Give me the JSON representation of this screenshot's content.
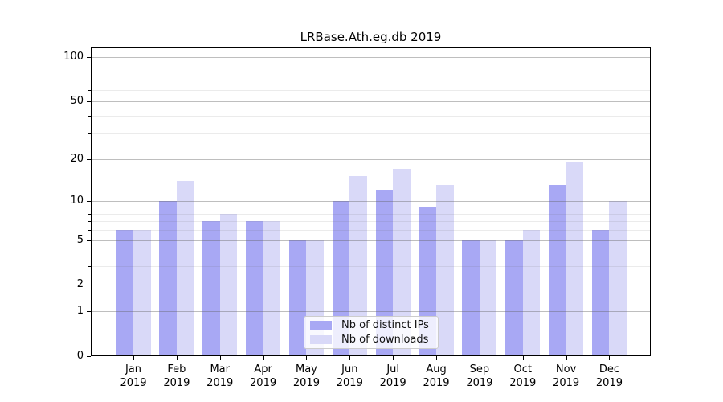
{
  "chart_data": {
    "type": "bar",
    "title": "LRBase.Ath.eg.db 2019",
    "x_year": "2019",
    "categories": [
      "Jan",
      "Feb",
      "Mar",
      "Apr",
      "May",
      "Jun",
      "Jul",
      "Aug",
      "Sep",
      "Oct",
      "Nov",
      "Dec"
    ],
    "series": [
      {
        "key": "distinct-ips",
        "name": "Nb of distinct IPs",
        "color": "#a8a8f4",
        "values": [
          6,
          10,
          7,
          7,
          5,
          10,
          12,
          9,
          5,
          5,
          13,
          6
        ]
      },
      {
        "key": "downloads",
        "name": "Nb of downloads",
        "color": "#d9d9f8",
        "values": [
          6,
          14,
          8,
          7,
          5,
          15,
          17,
          13,
          5,
          6,
          19,
          10
        ]
      }
    ],
    "y_axis": {
      "scale": "log1p",
      "ylim": [
        0,
        116
      ],
      "tick_labels": [
        "0",
        "1",
        "2",
        "5",
        "10",
        "20",
        "50",
        "100"
      ],
      "tick_values": [
        0,
        1,
        2,
        5,
        10,
        20,
        50,
        100
      ],
      "minor_tick_values": [
        3,
        4,
        6,
        7,
        8,
        9,
        30,
        40,
        60,
        70,
        80,
        90
      ]
    },
    "legend": {
      "position": "lower center"
    },
    "colors": {
      "bar_dark": "#a8a8f4",
      "bar_light": "#d9d9f8",
      "grid_major": "rgba(99,99,99,0.42)",
      "grid_minor": "rgba(99,99,99,0.13)",
      "spine": "#000000",
      "text": "#000000"
    },
    "grid": true
  }
}
